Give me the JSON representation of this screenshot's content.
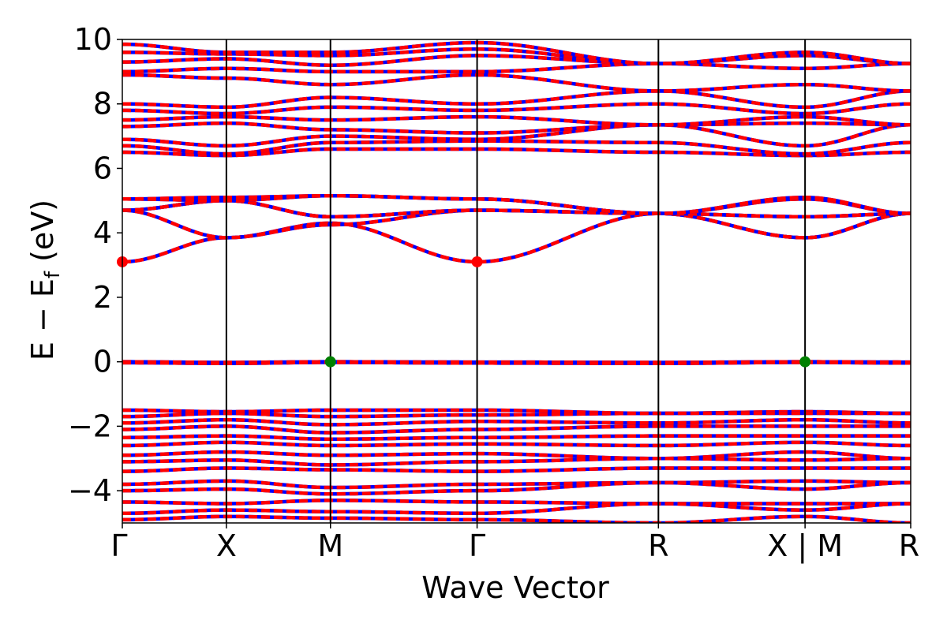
{
  "chart_data": {
    "type": "line",
    "title": "",
    "xlabel": "Wave Vector",
    "ylabel_parts": {
      "main": "E − E",
      "sub": "f",
      "unit": " (eV)"
    },
    "ylim": [
      -5,
      10
    ],
    "yticks": [
      -4,
      -2,
      0,
      2,
      4,
      6,
      8,
      10
    ],
    "ytick_labels": [
      "−4",
      "−2",
      "0",
      "2",
      "4",
      "6",
      "8",
      "10"
    ],
    "kpath_positions": [
      0,
      0.132,
      0.264,
      0.45,
      0.68,
      0.866,
      1.0
    ],
    "kpath_labels": [
      "Γ",
      "X",
      "M",
      "Γ",
      "R",
      "X | M",
      "R"
    ],
    "grid": false,
    "band_style": {
      "primary_color": "#ff0000",
      "secondary_color": "#0000ff",
      "style": "dashed overlay"
    },
    "valence_band_region": [
      -5,
      -1.5
    ],
    "conduction_band_region": [
      6.4,
      9.9
    ],
    "series": [
      {
        "values": [
          3.1,
          3.85,
          4.3,
          3.1,
          4.6,
          3.85,
          4.6
        ]
      },
      {
        "values": [
          4.7,
          3.85,
          4.25,
          4.7,
          4.6,
          3.85,
          4.6
        ]
      },
      {
        "values": [
          4.7,
          5.0,
          4.5,
          4.7,
          4.6,
          4.5,
          4.6
        ]
      },
      {
        "values": [
          4.7,
          5.0,
          4.5,
          4.7,
          4.6,
          4.5,
          4.6
        ]
      },
      {
        "values": [
          5.05,
          5.0,
          5.15,
          5.05,
          4.6,
          5.05,
          4.6
        ]
      },
      {
        "values": [
          5.05,
          5.1,
          5.15,
          5.05,
          4.6,
          5.1,
          4.6
        ]
      },
      {
        "values": [
          0,
          -0.02,
          0,
          -0.01,
          -0.02,
          0,
          -0.01
        ]
      },
      {
        "values": [
          -0.03,
          -0.05,
          -0.02,
          -0.04,
          -0.05,
          -0.02,
          -0.04
        ]
      },
      {
        "values": [
          6.5,
          6.4,
          6.6,
          6.6,
          6.5,
          6.4,
          6.5
        ]
      },
      {
        "values": [
          6.7,
          6.45,
          6.8,
          6.85,
          6.8,
          6.45,
          6.8
        ]
      },
      {
        "values": [
          6.9,
          6.7,
          7.0,
          6.9,
          7.35,
          6.7,
          7.35
        ]
      },
      {
        "values": [
          7.3,
          7.4,
          7.2,
          7.1,
          7.35,
          7.4,
          7.35
        ]
      },
      {
        "values": [
          7.5,
          7.6,
          7.5,
          7.6,
          7.35,
          7.6,
          7.35
        ]
      },
      {
        "values": [
          7.8,
          7.7,
          7.9,
          7.8,
          8.0,
          7.7,
          8.0
        ]
      },
      {
        "values": [
          8.0,
          7.9,
          8.2,
          8.0,
          8.4,
          7.9,
          8.4
        ]
      },
      {
        "values": [
          8.9,
          8.8,
          8.6,
          8.9,
          8.4,
          8.6,
          8.4
        ]
      },
      {
        "values": [
          9.0,
          9.1,
          9.0,
          9.0,
          9.25,
          9.1,
          9.25
        ]
      },
      {
        "values": [
          9.3,
          9.4,
          9.2,
          9.5,
          9.25,
          9.5,
          9.25
        ]
      },
      {
        "values": [
          9.6,
          9.55,
          9.5,
          9.7,
          9.25,
          9.55,
          9.25
        ]
      },
      {
        "values": [
          9.85,
          9.6,
          9.6,
          9.9,
          9.25,
          9.6,
          9.25
        ]
      },
      {
        "values": [
          -1.5,
          -1.55,
          -1.5,
          -1.5,
          -1.6,
          -1.55,
          -1.6
        ]
      },
      {
        "values": [
          -1.7,
          -1.6,
          -1.7,
          -1.65,
          -1.6,
          -1.6,
          -1.6
        ]
      },
      {
        "values": [
          -1.9,
          -1.8,
          -1.95,
          -1.85,
          -1.9,
          -1.8,
          -1.9
        ]
      },
      {
        "values": [
          -2.1,
          -2.0,
          -2.2,
          -2.1,
          -2.0,
          -2.0,
          -2.0
        ]
      },
      {
        "values": [
          -2.35,
          -2.3,
          -2.4,
          -2.35,
          -2.3,
          -2.3,
          -2.3
        ]
      },
      {
        "values": [
          -2.6,
          -2.5,
          -2.6,
          -2.55,
          -2.6,
          -2.5,
          -2.6
        ]
      },
      {
        "values": [
          -2.9,
          -2.8,
          -2.9,
          -2.85,
          -3.0,
          -2.8,
          -3.0
        ]
      },
      {
        "values": [
          -3.1,
          -3.05,
          -3.2,
          -3.1,
          -3.0,
          -3.05,
          -3.0
        ]
      },
      {
        "values": [
          -3.4,
          -3.3,
          -3.35,
          -3.4,
          -3.3,
          -3.3,
          -3.3
        ]
      },
      {
        "values": [
          -3.8,
          -3.7,
          -3.9,
          -3.8,
          -3.75,
          -3.7,
          -3.75
        ]
      },
      {
        "values": [
          -4.0,
          -3.95,
          -4.1,
          -4.0,
          -3.75,
          -3.95,
          -3.75
        ]
      },
      {
        "values": [
          -4.35,
          -4.4,
          -4.3,
          -4.35,
          -4.4,
          -4.4,
          -4.4
        ]
      },
      {
        "values": [
          -4.7,
          -4.6,
          -4.65,
          -4.7,
          -4.4,
          -4.6,
          -4.4
        ]
      },
      {
        "values": [
          -4.9,
          -4.8,
          -4.85,
          -4.9,
          -5.0,
          -4.8,
          -5.0
        ]
      }
    ],
    "markers": [
      {
        "x": 0,
        "y": 3.1,
        "color": "#ff0000"
      },
      {
        "x": 0.45,
        "y": 3.1,
        "color": "#ff0000"
      },
      {
        "x": 0.264,
        "y": 0,
        "color": "#008000"
      },
      {
        "x": 0.866,
        "y": 0,
        "color": "#008000"
      }
    ]
  }
}
